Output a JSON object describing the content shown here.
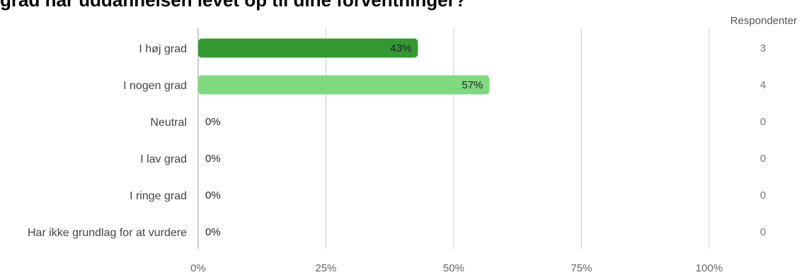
{
  "title": "grad har uddannelsen levet op til dine forventninger?",
  "respondents_header": "Respondenter",
  "chart_data": {
    "type": "bar",
    "orientation": "horizontal",
    "categories": [
      "I høj grad",
      "I nogen grad",
      "Neutral",
      "I lav grad",
      "I ringe grad",
      "Har ikke grundlag for at vurdere"
    ],
    "values": [
      43,
      57,
      0,
      0,
      0,
      0
    ],
    "value_labels": [
      "43%",
      "57%",
      "0%",
      "0%",
      "0%",
      "0%"
    ],
    "respondents": [
      3,
      4,
      0,
      0,
      0,
      0
    ],
    "xlim": [
      0,
      100
    ],
    "xticks": [
      "0%",
      "25%",
      "50%",
      "75%",
      "100%"
    ],
    "colors": [
      "#339933",
      "#80d880",
      "#339933",
      "#339933",
      "#339933",
      "#339933"
    ],
    "grid": true
  }
}
